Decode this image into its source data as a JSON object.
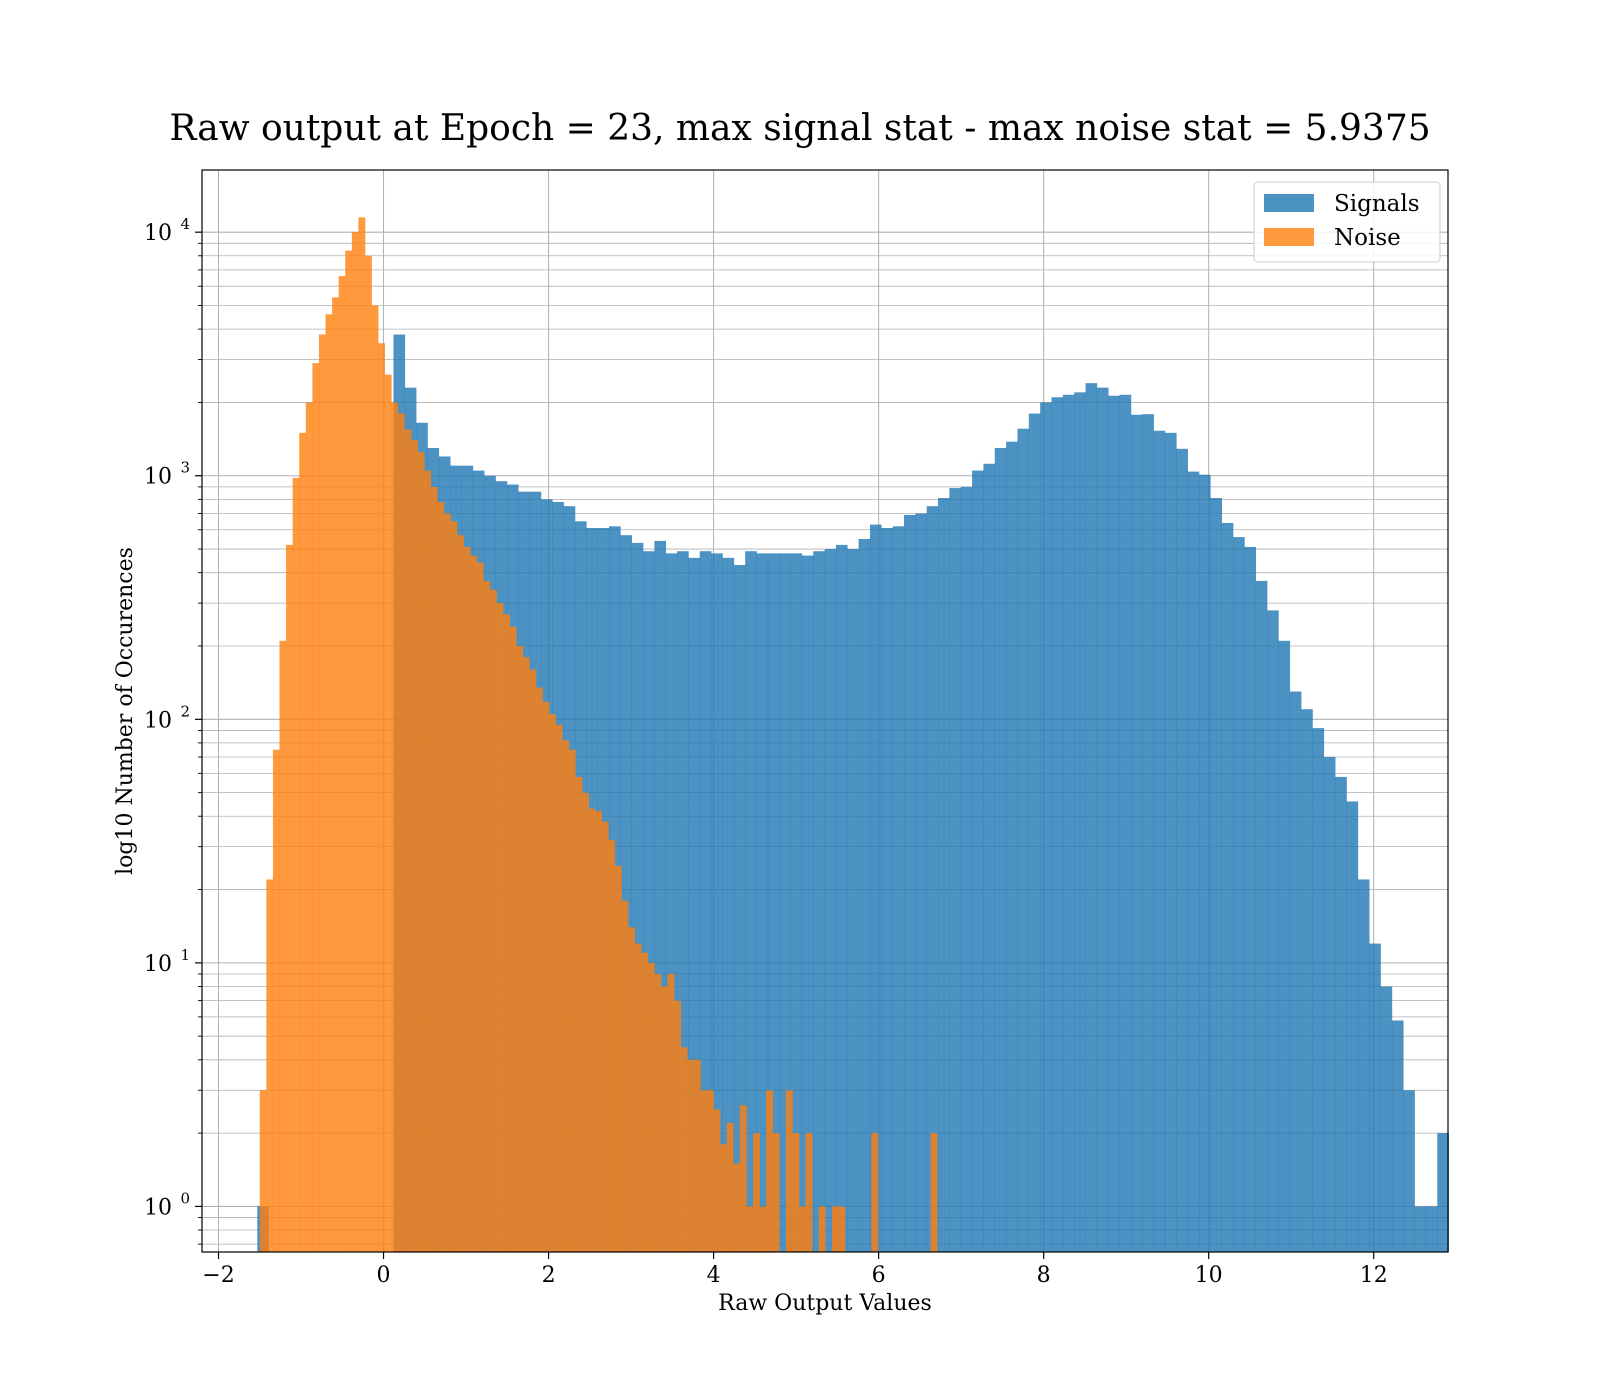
{
  "chart_data": {
    "type": "bar",
    "title": "Raw output at Epoch = 23, max signal stat - max noise stat = 5.9375",
    "xlabel": "Raw Output Values",
    "ylabel": "log10 Number of Occurences",
    "xlim": [
      -2.2,
      12.9
    ],
    "ylim": [
      0.65,
      18000
    ],
    "yscale": "log",
    "grid": true,
    "legend_position": "top-right",
    "x_ticks": [
      {
        "value": -2,
        "label": "−2"
      },
      {
        "value": 0,
        "label": "0"
      },
      {
        "value": 2,
        "label": "2"
      },
      {
        "value": 4,
        "label": "4"
      },
      {
        "value": 6,
        "label": "6"
      },
      {
        "value": 8,
        "label": "8"
      },
      {
        "value": 10,
        "label": "10"
      },
      {
        "value": 12,
        "label": "12"
      }
    ],
    "y_ticks": [
      {
        "value": 1,
        "base": "10",
        "exp": "0"
      },
      {
        "value": 10,
        "base": "10",
        "exp": "1"
      },
      {
        "value": 100,
        "base": "10",
        "exp": "2"
      },
      {
        "value": 1000,
        "base": "10",
        "exp": "3"
      },
      {
        "value": 10000,
        "base": "10",
        "exp": "4"
      }
    ],
    "series": [
      {
        "name": "Signals",
        "color": "#1f77b4",
        "opacity": 0.8,
        "bin_start": -1.53,
        "bin_width": 0.1375,
        "values": [
          1,
          0,
          0,
          0,
          0,
          0,
          0,
          0,
          0,
          0,
          0,
          0,
          3800,
          2300,
          1650,
          1300,
          1200,
          1100,
          1100,
          1050,
          1000,
          950,
          920,
          860,
          860,
          800,
          780,
          750,
          650,
          610,
          610,
          620,
          570,
          530,
          490,
          540,
          480,
          490,
          460,
          490,
          480,
          460,
          430,
          490,
          480,
          480,
          480,
          480,
          470,
          490,
          500,
          520,
          500,
          550,
          630,
          610,
          620,
          690,
          700,
          750,
          810,
          890,
          900,
          1050,
          1120,
          1300,
          1380,
          1560,
          1800,
          2000,
          2100,
          2150,
          2200,
          2400,
          2300,
          2130,
          2150,
          1780,
          1790,
          1530,
          1500,
          1290,
          1040,
          1010,
          810,
          640,
          560,
          510,
          370,
          280,
          210,
          130,
          110,
          92,
          70,
          58,
          46,
          22,
          12,
          8,
          5.8,
          3,
          1,
          1,
          2
        ]
      },
      {
        "name": "Noise",
        "color": "#ff7f0e",
        "opacity": 0.8,
        "bin_start": -1.5,
        "bin_width": 0.0797,
        "values": [
          3,
          22,
          75,
          210,
          520,
          980,
          1500,
          2000,
          2900,
          3800,
          4600,
          5400,
          6600,
          8400,
          10000,
          11500,
          8000,
          5000,
          3500,
          2600,
          2000,
          1800,
          1550,
          1400,
          1250,
          1050,
          900,
          780,
          700,
          650,
          570,
          510,
          470,
          440,
          370,
          340,
          300,
          270,
          240,
          200,
          180,
          160,
          135,
          118,
          105,
          95,
          82,
          75,
          58,
          50,
          43,
          42,
          38,
          32,
          25,
          18,
          14,
          12,
          11,
          10,
          9,
          8,
          9,
          7,
          4.5,
          4,
          4,
          3,
          3,
          2.5,
          1.8,
          2.2,
          1.5,
          2.6,
          1,
          2,
          1,
          3,
          2,
          0,
          3,
          2,
          1,
          2,
          0,
          1,
          0,
          1,
          1,
          0,
          0,
          0,
          0,
          2,
          0,
          0,
          0,
          0,
          0,
          0,
          0,
          0,
          2
        ]
      }
    ]
  }
}
